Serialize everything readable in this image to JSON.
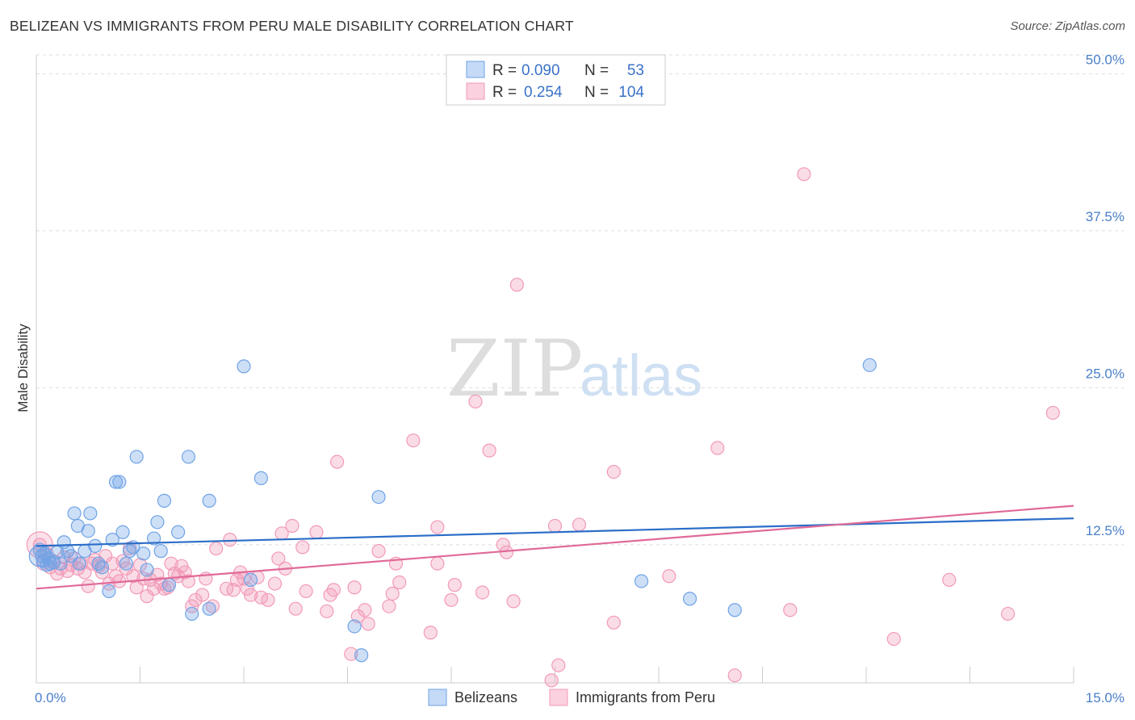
{
  "header": {
    "title": "BELIZEAN VS IMMIGRANTS FROM PERU MALE DISABILITY CORRELATION CHART",
    "source": "Source: ZipAtlas.com"
  },
  "watermark": {
    "zip": "ZIP",
    "atlas": "atlas"
  },
  "colors": {
    "blue": "#6fa3e6",
    "blue_line": "#2a6dc8",
    "pink": "#f29ab8",
    "pink_line": "#e06a98",
    "axis_text": "#4a7fc8",
    "grid": "#dddddd"
  },
  "legend": {
    "rows": [
      {
        "r_label": "R =",
        "r_value": "0.090",
        "n_label": "N =",
        "n_value": "53"
      },
      {
        "r_label": "R =",
        "r_value": "0.254",
        "n_label": "N =",
        "n_value": "104"
      }
    ]
  },
  "chart_data": {
    "type": "scatter",
    "title": "BELIZEAN VS IMMIGRANTS FROM PERU MALE DISABILITY CORRELATION CHART",
    "xlabel": "",
    "ylabel": "Male Disability",
    "xlim": [
      0,
      15
    ],
    "ylim": [
      1.5,
      51.5
    ],
    "x_tick_labels": [
      "0.0%",
      "15.0%"
    ],
    "y_ticks": [
      12.5,
      25.0,
      37.5,
      50.0
    ],
    "y_tick_labels": [
      "12.5%",
      "25.0%",
      "37.5%",
      "50.0%"
    ],
    "grid": true,
    "legend_position": "top-center",
    "series": [
      {
        "name": "Belizeans",
        "r": 0.09,
        "n": 53,
        "trend": {
          "x0": 0,
          "y0": 12.4,
          "x1": 15,
          "y1": 14.6
        },
        "points": [
          [
            0.05,
            12.1
          ],
          [
            0.08,
            11.6
          ],
          [
            0.1,
            11.2
          ],
          [
            0.12,
            11.8
          ],
          [
            0.15,
            10.9
          ],
          [
            0.18,
            11.4
          ],
          [
            0.2,
            11.0
          ],
          [
            0.25,
            11.1
          ],
          [
            0.3,
            11.9
          ],
          [
            0.35,
            11.0
          ],
          [
            0.4,
            12.7
          ],
          [
            0.45,
            12.0
          ],
          [
            0.5,
            11.6
          ],
          [
            0.55,
            15.0
          ],
          [
            0.6,
            14.0
          ],
          [
            0.62,
            11.0
          ],
          [
            0.7,
            12.0
          ],
          [
            0.75,
            13.6
          ],
          [
            0.78,
            15.0
          ],
          [
            0.85,
            12.4
          ],
          [
            0.9,
            11.0
          ],
          [
            0.95,
            10.7
          ],
          [
            1.05,
            8.8
          ],
          [
            1.1,
            12.9
          ],
          [
            1.15,
            17.5
          ],
          [
            1.2,
            17.5
          ],
          [
            1.25,
            13.5
          ],
          [
            1.3,
            11.0
          ],
          [
            1.35,
            12.0
          ],
          [
            1.4,
            12.3
          ],
          [
            1.45,
            19.5
          ],
          [
            1.55,
            11.8
          ],
          [
            1.6,
            10.5
          ],
          [
            1.7,
            13.0
          ],
          [
            1.75,
            14.3
          ],
          [
            1.8,
            12.0
          ],
          [
            1.85,
            16.0
          ],
          [
            1.92,
            9.3
          ],
          [
            2.05,
            13.5
          ],
          [
            2.25,
            7.0
          ],
          [
            2.2,
            19.5
          ],
          [
            2.5,
            7.4
          ],
          [
            2.5,
            16.0
          ],
          [
            3.0,
            26.7
          ],
          [
            3.1,
            9.7
          ],
          [
            3.25,
            17.8
          ],
          [
            4.6,
            6.0
          ],
          [
            4.7,
            3.7
          ],
          [
            4.95,
            16.3
          ],
          [
            8.75,
            9.6
          ],
          [
            9.45,
            8.2
          ],
          [
            10.1,
            7.3
          ],
          [
            12.05,
            26.8
          ]
        ]
      },
      {
        "name": "Immigrants from Peru",
        "r": 0.254,
        "n": 104,
        "trend": {
          "x0": 0,
          "y0": 9.0,
          "x1": 15,
          "y1": 15.6
        },
        "points": [
          [
            0.05,
            12.5
          ],
          [
            0.1,
            11.0
          ],
          [
            0.15,
            11.8
          ],
          [
            0.2,
            10.7
          ],
          [
            0.25,
            11.2
          ],
          [
            0.3,
            10.2
          ],
          [
            0.35,
            10.6
          ],
          [
            0.4,
            11.5
          ],
          [
            0.45,
            10.4
          ],
          [
            0.5,
            10.9
          ],
          [
            0.55,
            11.4
          ],
          [
            0.6,
            10.6
          ],
          [
            0.65,
            11.0
          ],
          [
            0.7,
            10.3
          ],
          [
            0.75,
            9.2
          ],
          [
            0.8,
            11.0
          ],
          [
            0.85,
            11.3
          ],
          [
            0.9,
            10.8
          ],
          [
            0.95,
            10.3
          ],
          [
            1.0,
            11.6
          ],
          [
            1.05,
            9.4
          ],
          [
            1.1,
            11.0
          ],
          [
            1.15,
            10.0
          ],
          [
            1.2,
            9.6
          ],
          [
            1.25,
            11.2
          ],
          [
            1.3,
            10.6
          ],
          [
            1.35,
            12.2
          ],
          [
            1.4,
            10.0
          ],
          [
            1.45,
            9.1
          ],
          [
            1.5,
            10.9
          ],
          [
            1.55,
            9.8
          ],
          [
            1.6,
            8.4
          ],
          [
            1.65,
            9.7
          ],
          [
            1.7,
            9.0
          ],
          [
            1.75,
            10.1
          ],
          [
            1.8,
            9.4
          ],
          [
            1.85,
            9.0
          ],
          [
            1.9,
            9.1
          ],
          [
            1.95,
            11.0
          ],
          [
            2.0,
            10.2
          ],
          [
            2.05,
            10.0
          ],
          [
            2.1,
            10.8
          ],
          [
            2.15,
            10.3
          ],
          [
            2.2,
            9.6
          ],
          [
            2.25,
            7.6
          ],
          [
            2.3,
            8.1
          ],
          [
            2.4,
            8.5
          ],
          [
            2.45,
            9.8
          ],
          [
            2.55,
            7.6
          ],
          [
            2.6,
            12.2
          ],
          [
            2.75,
            9.0
          ],
          [
            2.8,
            12.9
          ],
          [
            2.85,
            8.9
          ],
          [
            2.9,
            9.7
          ],
          [
            2.95,
            10.3
          ],
          [
            3.0,
            9.8
          ],
          [
            3.05,
            9.0
          ],
          [
            3.1,
            8.5
          ],
          [
            3.2,
            9.9
          ],
          [
            3.25,
            8.3
          ],
          [
            3.35,
            8.1
          ],
          [
            3.45,
            9.4
          ],
          [
            3.5,
            11.4
          ],
          [
            3.55,
            13.4
          ],
          [
            3.6,
            10.6
          ],
          [
            3.7,
            14.0
          ],
          [
            3.75,
            7.4
          ],
          [
            3.85,
            12.3
          ],
          [
            3.9,
            8.8
          ],
          [
            4.05,
            13.5
          ],
          [
            4.2,
            7.2
          ],
          [
            4.25,
            8.5
          ],
          [
            4.3,
            8.9
          ],
          [
            4.35,
            19.1
          ],
          [
            4.55,
            3.8
          ],
          [
            4.6,
            9.1
          ],
          [
            4.65,
            6.8
          ],
          [
            4.75,
            7.3
          ],
          [
            4.8,
            6.2
          ],
          [
            4.95,
            12.0
          ],
          [
            5.1,
            7.6
          ],
          [
            5.15,
            8.6
          ],
          [
            5.2,
            11.0
          ],
          [
            5.25,
            9.5
          ],
          [
            5.45,
            20.8
          ],
          [
            5.7,
            5.5
          ],
          [
            5.8,
            13.9
          ],
          [
            5.8,
            11.0
          ],
          [
            6.0,
            8.1
          ],
          [
            6.05,
            9.3
          ],
          [
            6.35,
            23.9
          ],
          [
            6.45,
            8.7
          ],
          [
            6.55,
            20.0
          ],
          [
            6.75,
            12.5
          ],
          [
            6.8,
            11.9
          ],
          [
            6.9,
            8.0
          ],
          [
            7.55,
            2.9
          ],
          [
            7.45,
            1.7
          ],
          [
            7.5,
            14.0
          ],
          [
            8.35,
            6.3
          ],
          [
            8.35,
            18.3
          ],
          [
            9.85,
            20.2
          ],
          [
            10.1,
            2.1
          ],
          [
            11.1,
            42.0
          ]
        ]
      }
    ],
    "extra_points_peru": [
      [
        6.95,
        33.2
      ],
      [
        7.85,
        14.1
      ],
      [
        9.15,
        10.0
      ],
      [
        10.9,
        7.3
      ],
      [
        13.2,
        9.7
      ],
      [
        12.4,
        5.0
      ],
      [
        14.05,
        7.0
      ],
      [
        14.7,
        23.0
      ]
    ]
  },
  "bottom_legend": {
    "items": [
      {
        "label": "Belizeans"
      },
      {
        "label": "Immigrants from Peru"
      }
    ]
  }
}
